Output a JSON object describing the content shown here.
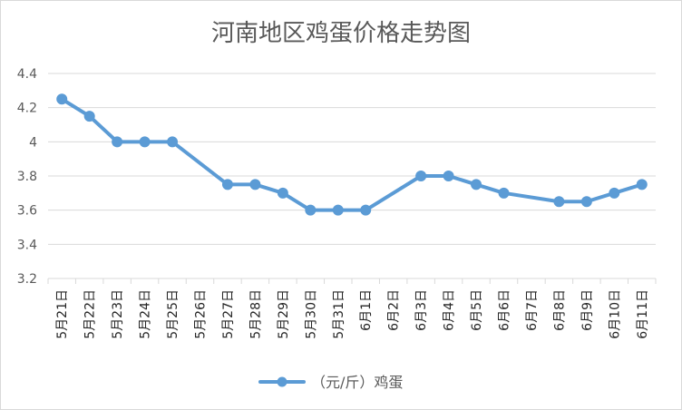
{
  "chart_data": {
    "type": "line",
    "title": "河南地区鸡蛋价格走势图",
    "categories": [
      "5月21日",
      "5月22日",
      "5月23日",
      "5月24日",
      "5月25日",
      "5月26日",
      "5月27日",
      "5月28日",
      "5月29日",
      "5月30日",
      "5月31日",
      "6月1日",
      "6月2日",
      "6月3日",
      "6月4日",
      "6月5日",
      "6月6日",
      "6月7日",
      "6月8日",
      "6月9日",
      "6月10日",
      "6月11日"
    ],
    "series": [
      {
        "name": "（元/斤）鸡蛋",
        "values": [
          4.25,
          4.15,
          4.0,
          4.0,
          4.0,
          null,
          3.75,
          3.75,
          3.7,
          3.6,
          3.6,
          3.6,
          null,
          3.8,
          3.8,
          3.75,
          3.7,
          null,
          3.65,
          3.65,
          3.7,
          3.75
        ]
      }
    ],
    "y_ticks": [
      "3.2",
      "3.4",
      "3.6",
      "3.8",
      "4",
      "4.2",
      "4.4"
    ],
    "ylim": [
      3.2,
      4.4
    ],
    "grid": true,
    "legend_position": "bottom",
    "colors": {
      "series": "#5b9bd5",
      "grid": "#d9d9d9",
      "text": "#595959"
    }
  }
}
